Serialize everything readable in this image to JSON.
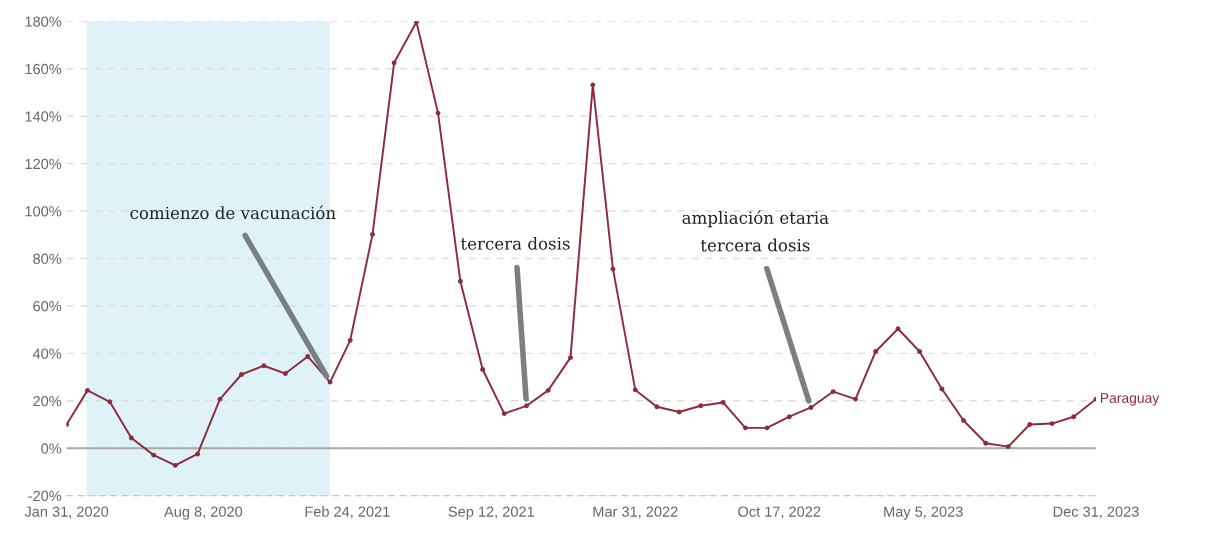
{
  "chart_data": {
    "type": "line",
    "x": [
      "2020-01-31",
      "2020-02-29",
      "2020-03-31",
      "2020-04-30",
      "2020-05-31",
      "2020-06-30",
      "2020-07-31",
      "2020-08-31",
      "2020-09-30",
      "2020-10-31",
      "2020-11-30",
      "2020-12-31",
      "2021-01-31",
      "2021-02-28",
      "2021-03-31",
      "2021-04-30",
      "2021-05-31",
      "2021-06-30",
      "2021-07-31",
      "2021-08-31",
      "2021-09-30",
      "2021-10-31",
      "2021-11-30",
      "2021-12-31",
      "2022-01-31",
      "2022-02-28",
      "2022-03-31",
      "2022-04-30",
      "2022-05-31",
      "2022-06-30",
      "2022-07-31",
      "2022-08-31",
      "2022-09-30",
      "2022-10-31",
      "2022-11-30",
      "2022-12-31",
      "2023-01-31",
      "2023-02-28",
      "2023-03-31",
      "2023-04-30",
      "2023-05-31",
      "2023-06-30",
      "2023-07-31",
      "2023-08-31",
      "2023-09-30",
      "2023-10-31",
      "2023-11-30",
      "2023-12-31"
    ],
    "series": [
      {
        "name": "Paraguay",
        "color": "#8b2e3c",
        "values": [
          10.0,
          24.4,
          19.6,
          4.3,
          -2.9,
          -7.2,
          -2.4,
          20.7,
          31.1,
          34.8,
          31.5,
          38.7,
          27.9,
          45.5,
          90.2,
          162.5,
          179.7,
          141.3,
          70.4,
          33.2,
          14.6,
          17.9,
          24.4,
          38.2,
          153.2,
          75.6,
          24.6,
          17.5,
          15.3,
          17.9,
          19.3,
          8.6,
          8.6,
          13.3,
          17.2,
          23.9,
          20.7,
          40.8,
          50.4,
          40.8,
          25.0,
          11.7,
          2.1,
          0.7,
          10.0,
          10.4,
          13.3,
          20.7
        ]
      }
    ],
    "xlim": [
      "2020-01-31",
      "2023-12-31"
    ],
    "xticks": [
      {
        "value": "2020-01-31",
        "label": "Jan 31, 2020"
      },
      {
        "value": "2020-08-08",
        "label": "Aug 8, 2020"
      },
      {
        "value": "2021-02-24",
        "label": "Feb 24, 2021"
      },
      {
        "value": "2021-09-12",
        "label": "Sep 12, 2021"
      },
      {
        "value": "2022-03-31",
        "label": "Mar 31, 2022"
      },
      {
        "value": "2022-10-17",
        "label": "Oct 17, 2022"
      },
      {
        "value": "2023-05-05",
        "label": "May 5, 2023"
      },
      {
        "value": "2023-12-31",
        "label": "Dec 31, 2023"
      }
    ],
    "ylim": [
      -20,
      180
    ],
    "yticks": [
      {
        "value": -20,
        "label": "-20%"
      },
      {
        "value": 0,
        "label": "0%"
      },
      {
        "value": 20,
        "label": "20%"
      },
      {
        "value": 40,
        "label": "40%"
      },
      {
        "value": 60,
        "label": "60%"
      },
      {
        "value": 80,
        "label": "80%"
      },
      {
        "value": 100,
        "label": "100%"
      },
      {
        "value": 120,
        "label": "120%"
      },
      {
        "value": 140,
        "label": "140%"
      },
      {
        "value": 160,
        "label": "160%"
      },
      {
        "value": 180,
        "label": "180%"
      }
    ],
    "grid": "y",
    "marker": "circle",
    "line_style": "solid",
    "legend": false,
    "bands": [
      {
        "axis": "x",
        "from": "2020-02-28",
        "to": "2021-01-31",
        "color": "#dff2f8"
      }
    ],
    "ref_lines": [
      {
        "axis": "y",
        "value": 0,
        "color": "#aaaaaa"
      }
    ],
    "annotations": [
      {
        "text": "comienzo de vacunación",
        "x": "2021-01-31",
        "y": 27.9
      },
      {
        "text": "tercera dosis",
        "x": "2021-10-31",
        "y": 17.9
      },
      {
        "text": "ampliación etaria\ntercera dosis",
        "x": "2022-11-30",
        "y": 17.2
      }
    ]
  }
}
